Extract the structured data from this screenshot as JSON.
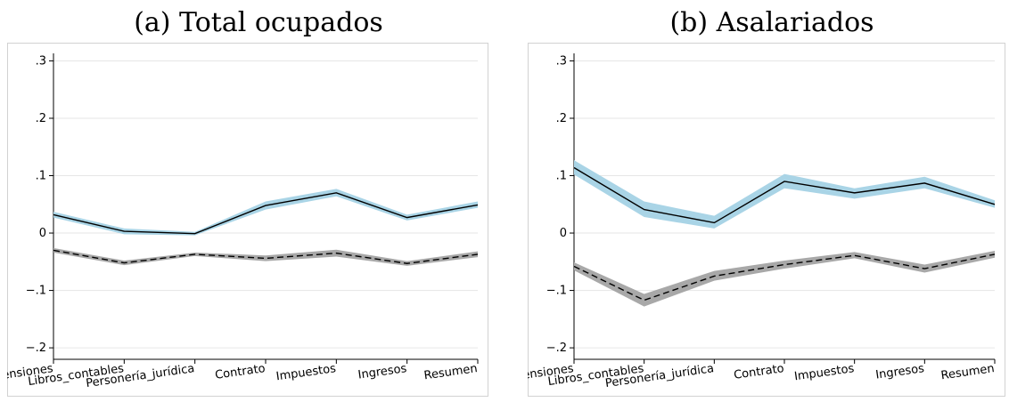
{
  "chart_data": [
    {
      "type": "line",
      "title": "(a) Total ocupados",
      "categories": [
        "Pensiones",
        "Libros_contables",
        "Personería_jurídica",
        "Contrato",
        "Impuestos",
        "Ingresos",
        "Resumen"
      ],
      "ylim": [
        -0.22,
        0.31
      ],
      "yticks": [
        0.3,
        0.2,
        0.1,
        0,
        -0.1,
        -0.2
      ],
      "ytick_labels": [
        ".3",
        ".2",
        ".1",
        "0",
        "−.1",
        "−.2"
      ],
      "grid": true,
      "series": [
        {
          "style": "solid",
          "color": "#000000",
          "band_color": "#a9d4e6",
          "values": [
            0.032,
            0.003,
            -0.001,
            0.048,
            0.07,
            0.027,
            0.049
          ],
          "lower": [
            0.027,
            -0.002,
            -0.004,
            0.041,
            0.064,
            0.022,
            0.044
          ],
          "upper": [
            0.037,
            0.008,
            0.002,
            0.055,
            0.077,
            0.032,
            0.055
          ]
        },
        {
          "style": "dashed",
          "color": "#000000",
          "band_color": "#a8a8a8",
          "values": [
            -0.03,
            -0.052,
            -0.037,
            -0.044,
            -0.035,
            -0.053,
            -0.037
          ],
          "lower": [
            -0.034,
            -0.056,
            -0.04,
            -0.049,
            -0.041,
            -0.057,
            -0.042
          ],
          "upper": [
            -0.026,
            -0.048,
            -0.034,
            -0.039,
            -0.029,
            -0.049,
            -0.032
          ]
        }
      ]
    },
    {
      "type": "line",
      "title": "(b) Asalariados",
      "categories": [
        "Pensiones",
        "Libros_contables",
        "Personería_jurídica",
        "Contrato",
        "Impuestos",
        "Ingresos",
        "Resumen"
      ],
      "ylim": [
        -0.22,
        0.31
      ],
      "yticks": [
        0.3,
        0.2,
        0.1,
        0,
        -0.1,
        -0.2
      ],
      "ytick_labels": [
        ".3",
        ".2",
        ".1",
        "0",
        "−.1",
        "−.2"
      ],
      "grid": true,
      "series": [
        {
          "style": "solid",
          "color": "#000000",
          "band_color": "#a9d4e6",
          "values": [
            0.114,
            0.041,
            0.018,
            0.09,
            0.07,
            0.087,
            0.05
          ],
          "lower": [
            0.102,
            0.028,
            0.008,
            0.078,
            0.06,
            0.078,
            0.044
          ],
          "upper": [
            0.127,
            0.055,
            0.03,
            0.103,
            0.078,
            0.098,
            0.057
          ]
        },
        {
          "style": "dashed",
          "color": "#000000",
          "band_color": "#a8a8a8",
          "values": [
            -0.058,
            -0.117,
            -0.075,
            -0.055,
            -0.039,
            -0.062,
            -0.037
          ],
          "lower": [
            -0.065,
            -0.128,
            -0.083,
            -0.062,
            -0.044,
            -0.069,
            -0.043
          ],
          "upper": [
            -0.051,
            -0.106,
            -0.066,
            -0.048,
            -0.033,
            -0.055,
            -0.031
          ]
        }
      ]
    }
  ]
}
